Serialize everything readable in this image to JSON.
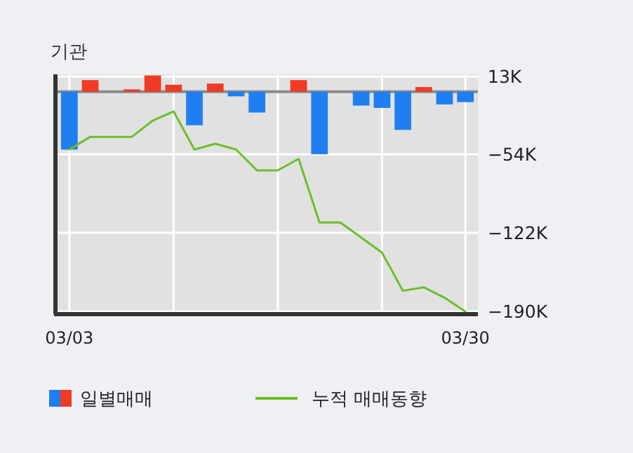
{
  "chart_data": {
    "type": "bar",
    "title": "기관",
    "categories": [
      "03/03",
      null,
      null,
      null,
      null,
      null,
      null,
      null,
      null,
      null,
      null,
      null,
      null,
      null,
      null,
      null,
      null,
      null,
      null,
      "03/30"
    ],
    "series": [
      {
        "name": "일별매매",
        "colors": [
          "#1f7ff0",
          "#f03a24",
          "#f03a24",
          "#f03a24",
          "#f03a24",
          "#f03a24",
          "#1f7ff0",
          "#f03a24",
          "#1f7ff0",
          "#1f7ff0",
          "#f03a24",
          "#f03a24",
          "#1f7ff0",
          "#f03a24",
          "#1f7ff0",
          "#1f7ff0",
          "#1f7ff0",
          "#f03a24",
          "#1f7ff0",
          "#1f7ff0"
        ],
        "values": [
          -50,
          10,
          0,
          2,
          14,
          6,
          -29,
          7,
          -4,
          -18,
          0,
          10,
          -54,
          0,
          -12,
          -14,
          -33,
          4,
          -11,
          -9
        ]
      },
      {
        "type": "line",
        "name": "누적 매매동향",
        "color": "#6cbf2a",
        "values": [
          -50,
          -39,
          -39,
          -39,
          -25,
          -17,
          -50,
          -45,
          -50,
          -68,
          -68,
          -58,
          -113,
          -113,
          -126,
          -139,
          -172,
          -169,
          -178,
          -190
        ]
      }
    ],
    "ylim": [
      -191,
      15
    ],
    "yticks": [
      {
        "value": 13,
        "label": "13K"
      },
      {
        "value": -54,
        "label": "−54K"
      },
      {
        "value": -122,
        "label": "−122K"
      },
      {
        "value": -190,
        "label": "−190K"
      }
    ],
    "grid": true,
    "legend": "bottom"
  }
}
